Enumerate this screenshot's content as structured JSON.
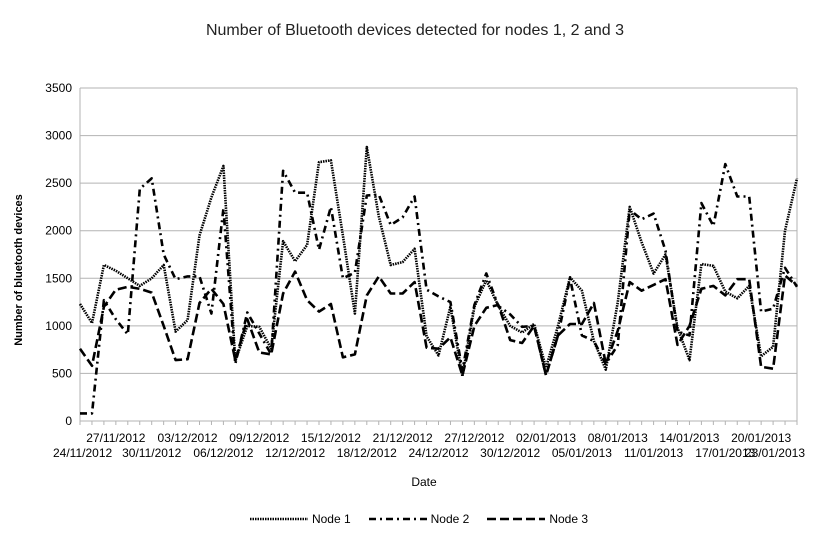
{
  "chart_data": {
    "type": "line",
    "title": "Number of Bluetooth devices detected for nodes 1, 2 and 3",
    "xlabel": "Date",
    "ylabel": "Number of bluetooth  devices",
    "ylim": [
      0,
      3500
    ],
    "yticks": [
      0,
      500,
      1000,
      1500,
      2000,
      2500,
      3000,
      3500
    ],
    "grid": true,
    "legend_position": "bottom",
    "x": [
      "24/11/2012",
      "25/11/2012",
      "26/11/2012",
      "27/11/2012",
      "28/11/2012",
      "29/11/2012",
      "30/11/2012",
      "01/12/2012",
      "02/12/2012",
      "03/12/2012",
      "04/12/2012",
      "05/12/2012",
      "06/12/2012",
      "07/12/2012",
      "08/12/2012",
      "09/12/2012",
      "10/12/2012",
      "11/12/2012",
      "12/12/2012",
      "13/12/2012",
      "14/12/2012",
      "15/12/2012",
      "16/12/2012",
      "17/12/2012",
      "18/12/2012",
      "19/12/2012",
      "20/12/2012",
      "21/12/2012",
      "22/12/2012",
      "23/12/2012",
      "24/12/2012",
      "25/12/2012",
      "26/12/2012",
      "27/12/2012",
      "28/12/2012",
      "29/12/2012",
      "30/12/2012",
      "31/12/2012",
      "01/01/2013",
      "02/01/2013",
      "03/01/2013",
      "04/01/2013",
      "05/01/2013",
      "06/01/2013",
      "07/01/2013",
      "08/01/2013",
      "09/01/2013",
      "10/01/2013",
      "11/01/2013",
      "12/01/2013",
      "13/01/2013",
      "14/01/2013",
      "15/01/2013",
      "16/01/2013",
      "17/01/2013",
      "18/01/2013",
      "19/01/2013",
      "20/01/2013",
      "21/01/2013",
      "22/01/2013",
      "23/01/2013"
    ],
    "tick_labels_upper": [
      "27/11/2012",
      "03/12/2012",
      "09/12/2012",
      "15/12/2012",
      "21/12/2012",
      "27/12/2012",
      "02/01/2013",
      "08/01/2013",
      "14/01/2013",
      "20/01/2013"
    ],
    "tick_labels_lower": [
      "24/11/2012",
      "30/11/2012",
      "06/12/2012",
      "12/12/2012",
      "18/12/2012",
      "24/12/2012",
      "30/12/2012",
      "05/01/2013",
      "11/01/2013",
      "17/01/2013",
      "23/01/2013"
    ],
    "series": [
      {
        "name": "Node 1",
        "style": "dotted-thick",
        "values": [
          1230,
          1030,
          1640,
          1580,
          1500,
          1420,
          1500,
          1640,
          940,
          1060,
          1950,
          2350,
          2680,
          630,
          1000,
          990,
          760,
          1890,
          1680,
          1850,
          2720,
          2740,
          1950,
          1130,
          2880,
          2150,
          1640,
          1670,
          1810,
          890,
          690,
          1200,
          470,
          1200,
          1480,
          1210,
          1000,
          930,
          1020,
          560,
          1000,
          1510,
          1370,
          840,
          540,
          1250,
          2250,
          1880,
          1550,
          1750,
          980,
          640,
          1650,
          1630,
          1360,
          1290,
          1420,
          680,
          780,
          2000,
          2550
        ]
      },
      {
        "name": "Node 2",
        "style": "dash-dot",
        "values": [
          80,
          80,
          1270,
          1070,
          910,
          2440,
          2550,
          1750,
          1490,
          1520,
          1520,
          1130,
          2230,
          600,
          1140,
          920,
          700,
          2630,
          2400,
          2400,
          1800,
          2250,
          1500,
          1560,
          2370,
          2380,
          2060,
          2140,
          2360,
          1380,
          1310,
          1250,
          530,
          1220,
          1550,
          1210,
          1120,
          990,
          1000,
          480,
          900,
          1500,
          900,
          840,
          600,
          800,
          2220,
          2120,
          2180,
          1790,
          940,
          900,
          2290,
          2050,
          2700,
          2360,
          2360,
          1150,
          1180,
          1610,
          1410
        ]
      },
      {
        "name": "Node 3",
        "style": "dashed",
        "values": [
          760,
          580,
          1200,
          1380,
          1410,
          1390,
          1350,
          1000,
          640,
          650,
          1240,
          1390,
          1230,
          640,
          1070,
          720,
          700,
          1340,
          1570,
          1270,
          1150,
          1230,
          670,
          700,
          1320,
          1520,
          1340,
          1340,
          1460,
          770,
          760,
          880,
          480,
          1000,
          1190,
          1220,
          850,
          820,
          1000,
          480,
          900,
          1020,
          1020,
          1240,
          600,
          950,
          1460,
          1370,
          1430,
          1490,
          800,
          1000,
          1390,
          1420,
          1320,
          1490,
          1490,
          570,
          550,
          1530,
          1420
        ]
      }
    ]
  }
}
